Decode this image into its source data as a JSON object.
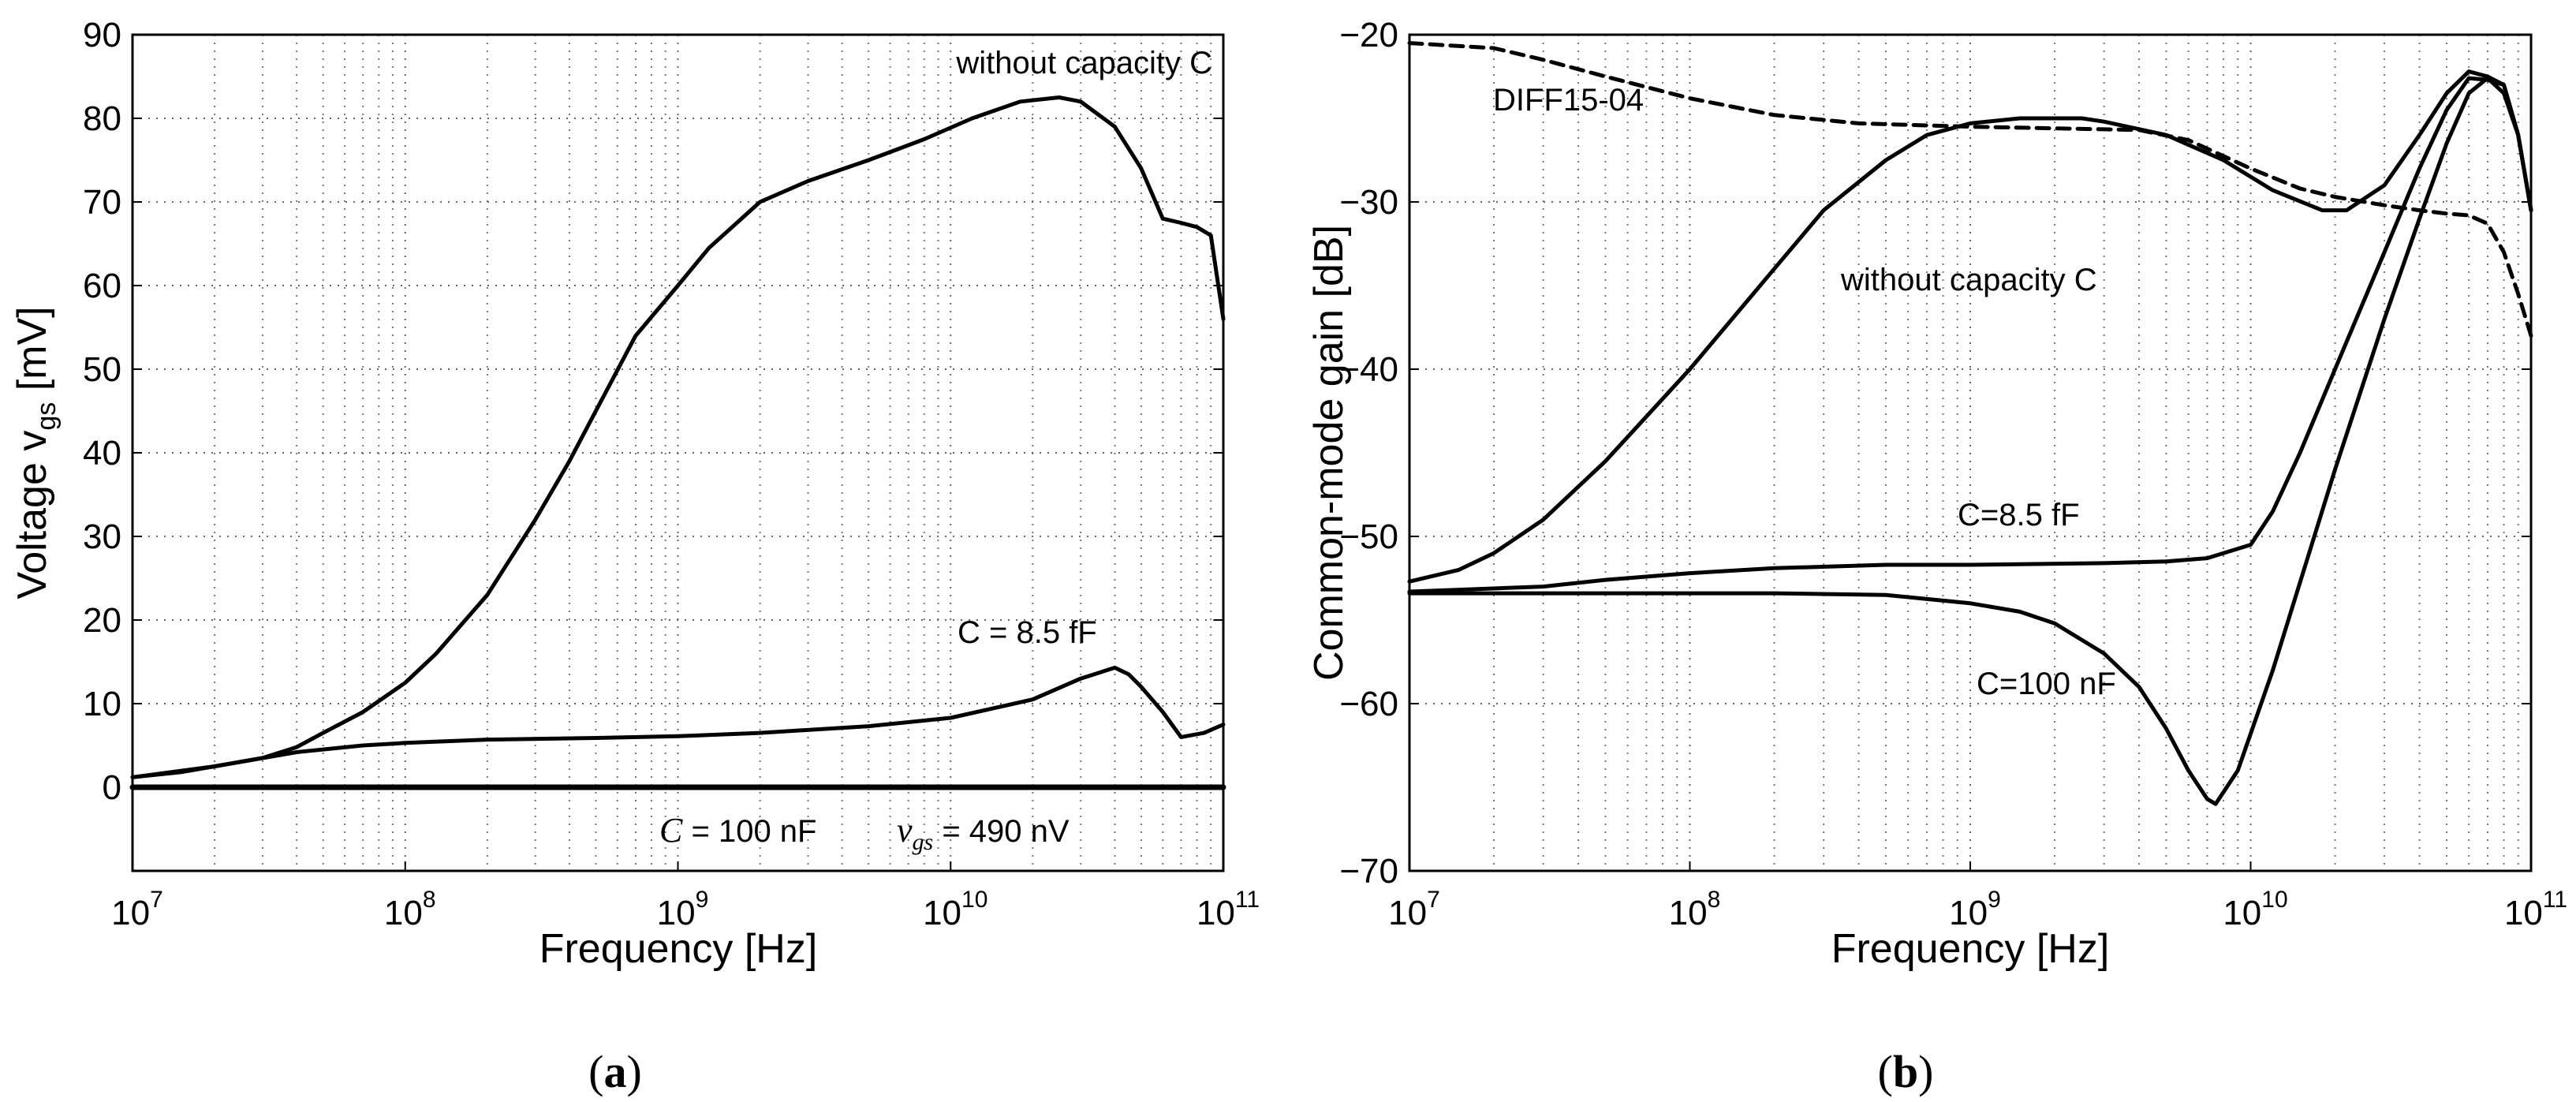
{
  "chart_data": [
    {
      "type": "line",
      "id": "a",
      "panel_label": "a",
      "xlabel": "Frequency [Hz]",
      "ylabel": "Voltage v",
      "ylabel_sub": "gs",
      "ylabel_unit": " [mV]",
      "xscale": "log",
      "xlim": [
        10000000.0,
        100000000000.0
      ],
      "ylim": [
        -10,
        90
      ],
      "yticks": [
        0,
        10,
        20,
        30,
        40,
        50,
        60,
        70,
        80,
        90
      ],
      "xticks": [
        {
          "value": 10000000.0,
          "base": "10",
          "exp": "7"
        },
        {
          "value": 100000000.0,
          "base": "10",
          "exp": "8"
        },
        {
          "value": 1000000000.0,
          "base": "10",
          "exp": "9"
        },
        {
          "value": 10000000000.0,
          "base": "10",
          "exp": "10"
        },
        {
          "value": 100000000000.0,
          "base": "10",
          "exp": "11"
        }
      ],
      "grid": true,
      "series": [
        {
          "name": "without capacity C",
          "style": "solid",
          "x": [
            10000000.0,
            15000000.0,
            20000000.0,
            30000000.0,
            40000000.0,
            50000000.0,
            70000000.0,
            100000000.0,
            130000000.0,
            200000000.0,
            300000000.0,
            400000000.0,
            500000000.0,
            700000000.0,
            1000000000.0,
            1300000000.0,
            2000000000.0,
            3000000000.0,
            5000000000.0,
            8000000000.0,
            12000000000.0,
            18000000000.0,
            25000000000.0,
            30000000000.0,
            40000000000.0,
            50000000000.0,
            60000000000.0,
            70000000000.0,
            80000000000.0,
            90000000000.0,
            100000000000.0
          ],
          "y": [
            1.2,
            1.8,
            2.5,
            3.5,
            4.8,
            6.5,
            9,
            12.5,
            16,
            23,
            32,
            39,
            45,
            54,
            60,
            64.5,
            70,
            72.5,
            75,
            77.5,
            80,
            82,
            82.5,
            82,
            79,
            74,
            68,
            67.5,
            67,
            66,
            56
          ]
        },
        {
          "name": "C = 8.5 fF",
          "style": "solid",
          "x": [
            10000000.0,
            20000000.0,
            40000000.0,
            70000000.0,
            100000000.0,
            200000000.0,
            500000000.0,
            1000000000.0,
            2000000000.0,
            5000000000.0,
            10000000000.0,
            20000000000.0,
            30000000000.0,
            40000000000.0,
            45000000000.0,
            50000000000.0,
            60000000000.0,
            70000000000.0,
            85000000000.0,
            100000000000.0
          ],
          "y": [
            1.2,
            2.5,
            4.2,
            5,
            5.3,
            5.7,
            5.9,
            6.1,
            6.5,
            7.3,
            8.3,
            10.5,
            13,
            14.3,
            13.5,
            12,
            9,
            6,
            6.5,
            7.5
          ]
        },
        {
          "name": "C = 100 nF",
          "style": "solid",
          "x": [
            10000000.0,
            100000000000.0
          ],
          "y": [
            0,
            0
          ]
        }
      ],
      "annotations": {
        "without": "without capacity C",
        "c85": "C = 8.5 fF",
        "c100_var": "C",
        "c100_rest": " = 100 nF",
        "vgs_var": "v",
        "vgs_sub": "gs",
        "vgs_rest": " = 490 nV"
      }
    },
    {
      "type": "line",
      "id": "b",
      "panel_label": "b",
      "xlabel": "Frequency [Hz]",
      "ylabel": "Common-mode gain [dB]",
      "xscale": "log",
      "xlim": [
        10000000.0,
        100000000000.0
      ],
      "ylim": [
        -70,
        -20
      ],
      "yticks": [
        -70,
        -60,
        -50,
        -40,
        -30,
        -20
      ],
      "ytick_labels": [
        "−70",
        "−60",
        "−50",
        "−40",
        "−30",
        "−20"
      ],
      "xticks": [
        {
          "value": 10000000.0,
          "base": "10",
          "exp": "7"
        },
        {
          "value": 100000000.0,
          "base": "10",
          "exp": "8"
        },
        {
          "value": 1000000000.0,
          "base": "10",
          "exp": "9"
        },
        {
          "value": 10000000000.0,
          "base": "10",
          "exp": "10"
        },
        {
          "value": 100000000000.0,
          "base": "10",
          "exp": "11"
        }
      ],
      "grid": true,
      "series": [
        {
          "name": "DIFF15-04",
          "style": "dashed",
          "x": [
            10000000.0,
            20000000.0,
            30000000.0,
            50000000.0,
            100000000.0,
            200000000.0,
            400000000.0,
            1000000000.0,
            2000000000.0,
            4000000000.0,
            6000000000.0,
            10000000000.0,
            15000000000.0,
            20000000000.0,
            30000000000.0,
            40000000000.0,
            50000000000.0,
            60000000000.0,
            70000000000.0,
            80000000000.0,
            90000000000.0,
            100000000000.0
          ],
          "y": [
            -20.5,
            -20.8,
            -21.5,
            -22.5,
            -23.8,
            -24.8,
            -25.3,
            -25.5,
            -25.6,
            -25.7,
            -26.3,
            -28,
            -29.2,
            -29.7,
            -30.2,
            -30.5,
            -30.7,
            -30.8,
            -31.3,
            -33,
            -35.5,
            -38
          ]
        },
        {
          "name": "without capacity C",
          "style": "solid",
          "x": [
            10000000.0,
            15000000.0,
            20000000.0,
            30000000.0,
            50000000.0,
            100000000.0,
            200000000.0,
            300000000.0,
            500000000.0,
            700000000.0,
            1000000000.0,
            1500000000.0,
            2000000000.0,
            2500000000.0,
            3000000000.0,
            5000000000.0,
            8000000000.0,
            12000000000.0,
            18000000000.0,
            22000000000.0,
            30000000000.0,
            40000000000.0,
            50000000000.0,
            60000000000.0,
            70000000000.0,
            80000000000.0,
            90000000000.0,
            100000000000.0
          ],
          "y": [
            -52.7,
            -52,
            -51,
            -49,
            -45.5,
            -40,
            -34,
            -30.5,
            -27.5,
            -26,
            -25.3,
            -25,
            -25,
            -25,
            -25.2,
            -26,
            -27.5,
            -29.3,
            -30.5,
            -30.5,
            -29,
            -26,
            -23.5,
            -22.2,
            -22.5,
            -23,
            -26,
            -30.5
          ]
        },
        {
          "name": "C=8.5 fF",
          "style": "solid",
          "x": [
            10000000.0,
            30000000.0,
            50000000.0,
            100000000.0,
            200000000.0,
            500000000.0,
            1000000000.0,
            3000000000.0,
            5000000000.0,
            7000000000.0,
            8000000000.0,
            10000000000.0,
            12000000000.0,
            15000000000.0,
            20000000000.0,
            30000000000.0,
            40000000000.0,
            50000000000.0,
            60000000000.0,
            70000000000.0,
            80000000000.0,
            90000000000.0,
            100000000000.0
          ],
          "y": [
            -53.3,
            -53,
            -52.6,
            -52.2,
            -51.9,
            -51.7,
            -51.7,
            -51.6,
            -51.5,
            -51.3,
            -51,
            -50.5,
            -48.5,
            -45,
            -40,
            -33,
            -28,
            -24.5,
            -22.6,
            -22.7,
            -23,
            -26,
            -30.5
          ]
        },
        {
          "name": "C=100 nF",
          "style": "solid",
          "x": [
            10000000.0,
            200000000.0,
            500000000.0,
            1000000000.0,
            1500000000.0,
            2000000000.0,
            3000000000.0,
            4000000000.0,
            5000000000.0,
            6000000000.0,
            7000000000.0,
            7500000000.0,
            9000000000.0,
            12000000000.0,
            20000000000.0,
            30000000000.0,
            40000000000.0,
            50000000000.0,
            60000000000.0,
            70000000000.0,
            80000000000.0,
            90000000000.0,
            100000000000.0
          ],
          "y": [
            -53.4,
            -53.4,
            -53.5,
            -54,
            -54.5,
            -55.2,
            -57,
            -59,
            -61.5,
            -64,
            -65.7,
            -66,
            -64,
            -58,
            -46,
            -37,
            -31,
            -26.5,
            -23.5,
            -22.6,
            -23.5,
            -26,
            -30.5
          ]
        }
      ],
      "annotations": {
        "diff": "DIFF15-04",
        "without": "without capacity C",
        "c85": "C=8.5 fF",
        "c100": "C=100 nF"
      }
    }
  ]
}
